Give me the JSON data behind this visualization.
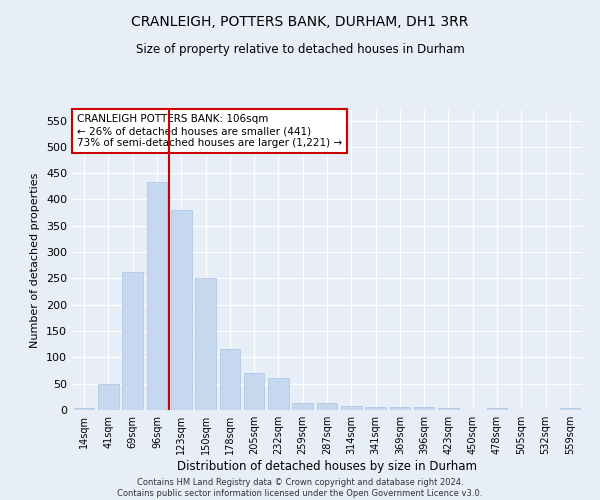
{
  "title1": "CRANLEIGH, POTTERS BANK, DURHAM, DH1 3RR",
  "title2": "Size of property relative to detached houses in Durham",
  "xlabel": "Distribution of detached houses by size in Durham",
  "ylabel": "Number of detached properties",
  "categories": [
    "14sqm",
    "41sqm",
    "69sqm",
    "96sqm",
    "123sqm",
    "150sqm",
    "178sqm",
    "205sqm",
    "232sqm",
    "259sqm",
    "287sqm",
    "314sqm",
    "341sqm",
    "369sqm",
    "396sqm",
    "423sqm",
    "450sqm",
    "478sqm",
    "505sqm",
    "532sqm",
    "559sqm"
  ],
  "values": [
    3,
    50,
    263,
    433,
    380,
    250,
    115,
    70,
    60,
    13,
    13,
    8,
    6,
    5,
    5,
    3,
    0,
    3,
    0,
    0,
    3
  ],
  "bar_color": "#c5d8f0",
  "bar_edge_color": "#a8c4e0",
  "vline_x": 3.5,
  "vline_color": "#cc0000",
  "annotation_text": "CRANLEIGH POTTERS BANK: 106sqm\n← 26% of detached houses are smaller (441)\n73% of semi-detached houses are larger (1,221) →",
  "annotation_box_color": "#ffffff",
  "annotation_box_edge": "#cc0000",
  "ylim": [
    0,
    570
  ],
  "yticks": [
    0,
    50,
    100,
    150,
    200,
    250,
    300,
    350,
    400,
    450,
    500,
    550
  ],
  "background_color": "#e8eef8",
  "grid_color": "#ffffff",
  "footer": "Contains HM Land Registry data © Crown copyright and database right 2024.\nContains public sector information licensed under the Open Government Licence v3.0."
}
